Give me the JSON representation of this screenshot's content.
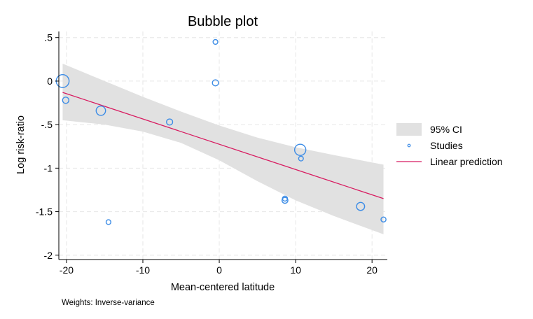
{
  "chart_data": {
    "type": "scatter",
    "title": "Bubble plot",
    "xlabel": "Mean-centered latitude",
    "ylabel": "Log risk-ratio",
    "note": "Weights: Inverse-variance",
    "xlim": [
      -21,
      22
    ],
    "ylim": [
      -2.05,
      0.57
    ],
    "xticks": [
      -20,
      -10,
      0,
      10,
      20
    ],
    "xtick_labels": [
      "-20",
      "-10",
      "0",
      "10",
      "20"
    ],
    "yticks": [
      0.5,
      0,
      -0.5,
      -1,
      -1.5,
      -2
    ],
    "ytick_labels": [
      ".5",
      "0",
      "-.5",
      "-1",
      "-1.5",
      "-2"
    ],
    "grid": true,
    "legend_position": "right",
    "legend": [
      {
        "label": "95% CI",
        "kind": "band"
      },
      {
        "label": "Studies",
        "kind": "marker"
      },
      {
        "label": "Linear prediction",
        "kind": "line"
      }
    ],
    "colors": {
      "studies": "#3c8ce6",
      "line": "#d81b60",
      "ci": "#e1e1e1"
    },
    "studies": [
      {
        "x": -20.5,
        "y": 0.0,
        "w": 6.6
      },
      {
        "x": -20.1,
        "y": -0.22,
        "w": 1.6
      },
      {
        "x": -15.5,
        "y": -0.34,
        "w": 3.5
      },
      {
        "x": -14.5,
        "y": -1.62,
        "w": 0.9
      },
      {
        "x": -6.5,
        "y": -0.47,
        "w": 1.5
      },
      {
        "x": -0.5,
        "y": 0.45,
        "w": 0.9
      },
      {
        "x": -0.5,
        "y": -0.02,
        "w": 1.5
      },
      {
        "x": 8.6,
        "y": -1.35,
        "w": 1.0
      },
      {
        "x": 8.6,
        "y": -1.37,
        "w": 1.4
      },
      {
        "x": 10.6,
        "y": -0.79,
        "w": 5.0
      },
      {
        "x": 10.7,
        "y": -0.89,
        "w": 0.9
      },
      {
        "x": 18.5,
        "y": -1.44,
        "w": 2.6
      },
      {
        "x": 21.5,
        "y": -1.59,
        "w": 1.0
      }
    ],
    "fit_line": {
      "x": [
        -20.5,
        21.5
      ],
      "y": [
        -0.13,
        -1.35
      ]
    },
    "ci_band": {
      "x": [
        -20.5,
        -15,
        -10,
        -5,
        0,
        5,
        10,
        15,
        21.5
      ],
      "lower": [
        -0.45,
        -0.5,
        -0.58,
        -0.71,
        -0.91,
        -1.15,
        -1.37,
        -1.55,
        -1.76
      ],
      "upper": [
        0.2,
        0.0,
        -0.18,
        -0.35,
        -0.51,
        -0.65,
        -0.76,
        -0.85,
        -0.96
      ]
    }
  }
}
